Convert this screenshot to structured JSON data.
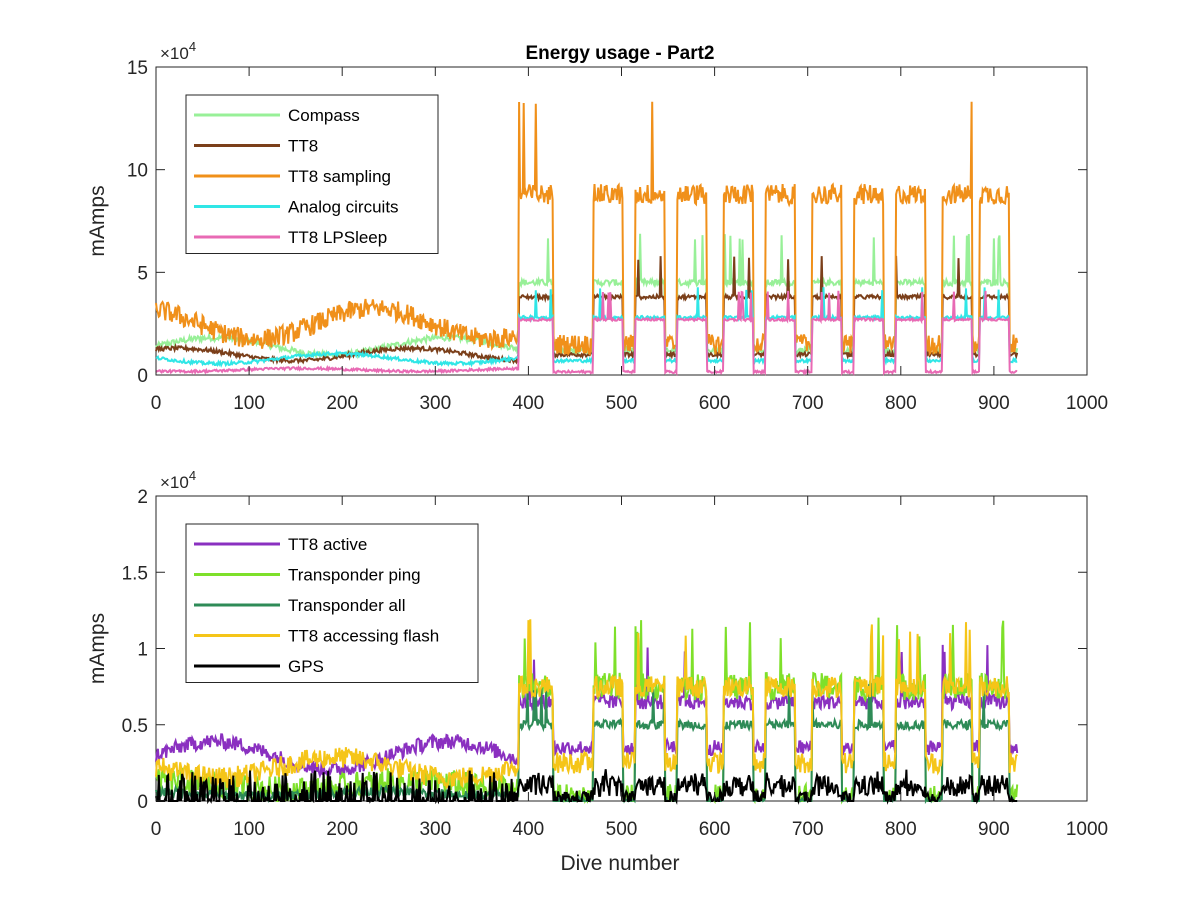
{
  "title": "Energy usage - Part2",
  "xlabel": "Dive number",
  "chart_data": [
    {
      "type": "line",
      "title": "Energy usage - Part2",
      "xlabel": "",
      "ylabel": "mAmps",
      "xlim": [
        0,
        1000
      ],
      "ylim": [
        0,
        150000
      ],
      "xticks": [
        "0",
        "100",
        "200",
        "300",
        "400",
        "500",
        "600",
        "700",
        "800",
        "900",
        "1000"
      ],
      "yticks": [
        "0",
        "5",
        "10",
        "15"
      ],
      "y_exponent_base": "×10",
      "y_exponent_power": "4",
      "grid": false,
      "legend_position": "top-left",
      "series": [
        {
          "name": "Compass",
          "color": "#98f098",
          "baseline_pre": 14000,
          "high": 45000,
          "low": 12000,
          "noise": 1500
        },
        {
          "name": "TT8",
          "color": "#7b3f1a",
          "baseline_pre": 10000,
          "high": 38000,
          "low": 10000,
          "noise": 1000
        },
        {
          "name": "TT8 sampling",
          "color": "#f0901a",
          "baseline_pre": 25000,
          "high": 88000,
          "low": 15000,
          "noise": 5000
        },
        {
          "name": "Analog circuits",
          "color": "#30e6e6",
          "baseline_pre": 8000,
          "high": 28000,
          "low": 7000,
          "noise": 800
        },
        {
          "name": "TT8 LPSleep",
          "color": "#e86ab4",
          "baseline_pre": 2500,
          "high": 27000,
          "low": 1500,
          "noise": 600
        }
      ]
    },
    {
      "type": "line",
      "title": "",
      "xlabel": "Dive number",
      "ylabel": "mAmps",
      "xlim": [
        0,
        1000
      ],
      "ylim": [
        0,
        20000
      ],
      "xticks": [
        "0",
        "100",
        "200",
        "300",
        "400",
        "500",
        "600",
        "700",
        "800",
        "900",
        "1000"
      ],
      "yticks": [
        "0",
        "0.5",
        "1",
        "1.5",
        "2"
      ],
      "y_exponent_base": "×10",
      "y_exponent_power": "4",
      "grid": false,
      "legend_position": "top-left",
      "series": [
        {
          "name": "TT8 active",
          "color": "#8a30c0",
          "baseline_pre": 3000,
          "high": 6500,
          "low": 3500,
          "noise": 500
        },
        {
          "name": "Transponder ping",
          "color": "#7ee02a",
          "baseline_pre": 1000,
          "high": 7500,
          "low": 200,
          "noise": 900
        },
        {
          "name": "Transponder all",
          "color": "#2e8b57",
          "baseline_pre": 500,
          "high": 5000,
          "low": 0,
          "noise": 300
        },
        {
          "name": "TT8 accessing flash",
          "color": "#f5c518",
          "baseline_pre": 2200,
          "high": 7500,
          "low": 2500,
          "noise": 700
        },
        {
          "name": "GPS",
          "color": "#000000",
          "baseline_pre": 400,
          "high": 1000,
          "low": 0,
          "noise": 700
        }
      ]
    }
  ]
}
